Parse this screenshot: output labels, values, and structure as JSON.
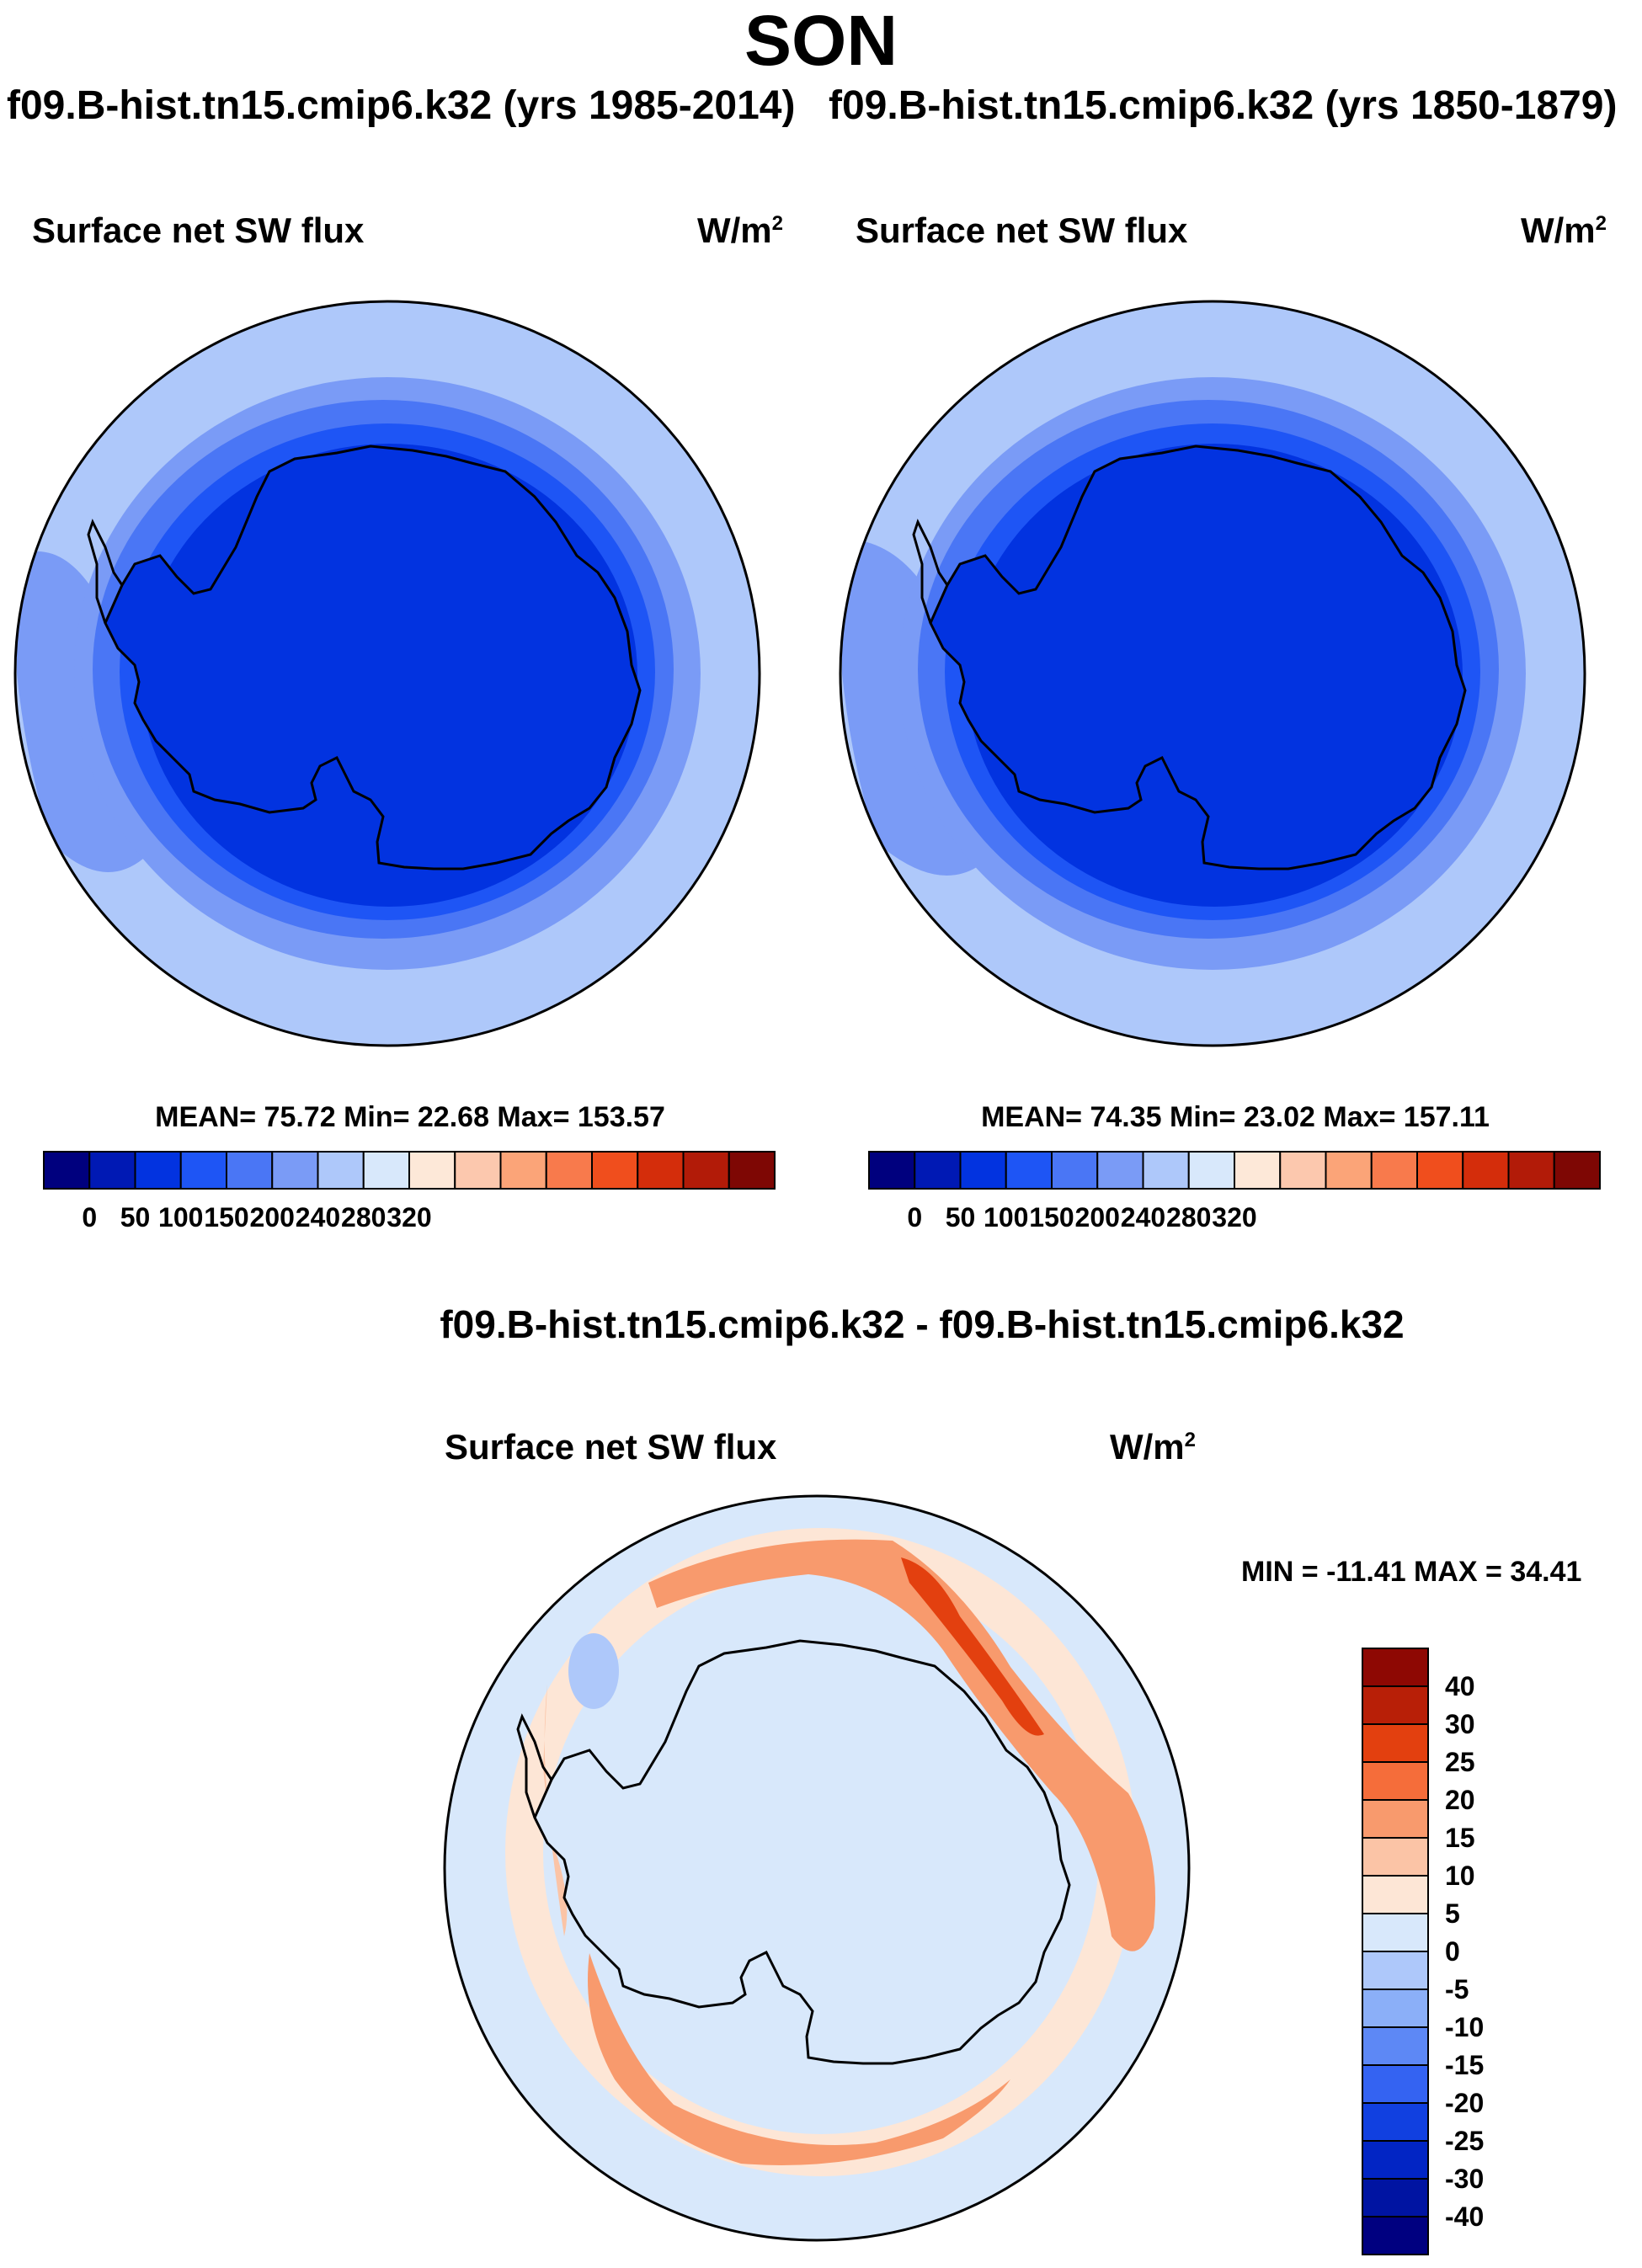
{
  "figure": {
    "season": "SON",
    "case_left": "f09.B-hist.tn15.cmip6.k32 (yrs 1985-2014)",
    "case_right": "f09.B-hist.tn15.cmip6.k32 (yrs 1850-1879)",
    "diff_title": "f09.B-hist.tn15.cmip6.k32 - f09.B-hist.tn15.cmip6.k32"
  },
  "panels": {
    "left": {
      "variable": "Surface net SW flux",
      "unit": "W/m",
      "unit_exp": "2",
      "stats": "MEAN=  75.72  Min=  22.68  Max= 153.57"
    },
    "right": {
      "variable": "Surface net SW flux",
      "unit": "W/m",
      "unit_exp": "2",
      "stats": "MEAN=  74.35  Min=  23.02  Max= 157.11"
    },
    "diff": {
      "variable": "Surface net SW flux",
      "unit": "W/m",
      "unit_exp": "2",
      "stats": "MIN = -11.41 MAX =  34.41"
    }
  },
  "colorbar_main": {
    "colors": [
      "#00007e",
      "#0019b4",
      "#0233e0",
      "#1e55f5",
      "#4a76f5",
      "#7a9bf6",
      "#aec8fa",
      "#d8e8fb",
      "#fde8d8",
      "#fcc8ae",
      "#fba478",
      "#f87a4c",
      "#f04e1d",
      "#d42d0b",
      "#b21b08",
      "#7e0704"
    ],
    "tick_labels": [
      "0",
      "50",
      "100",
      "150",
      "200",
      "240",
      "280",
      "320"
    ]
  },
  "colorbar_diff": {
    "colors": [
      "#8e0803",
      "#b81f07",
      "#e3400f",
      "#f56d3a",
      "#f89a6d",
      "#fbc4a6",
      "#fde6d6",
      "#d8e8fb",
      "#aec8fa",
      "#8baff8",
      "#5d88f5",
      "#3463f2",
      "#1140e0",
      "#0225c4",
      "#0014a2",
      "#000080"
    ],
    "tick_labels": [
      "40",
      "30",
      "25",
      "20",
      "15",
      "10",
      "5",
      "0",
      "-5",
      "-10",
      "-15",
      "-20",
      "-25",
      "-30",
      "-40"
    ]
  }
}
